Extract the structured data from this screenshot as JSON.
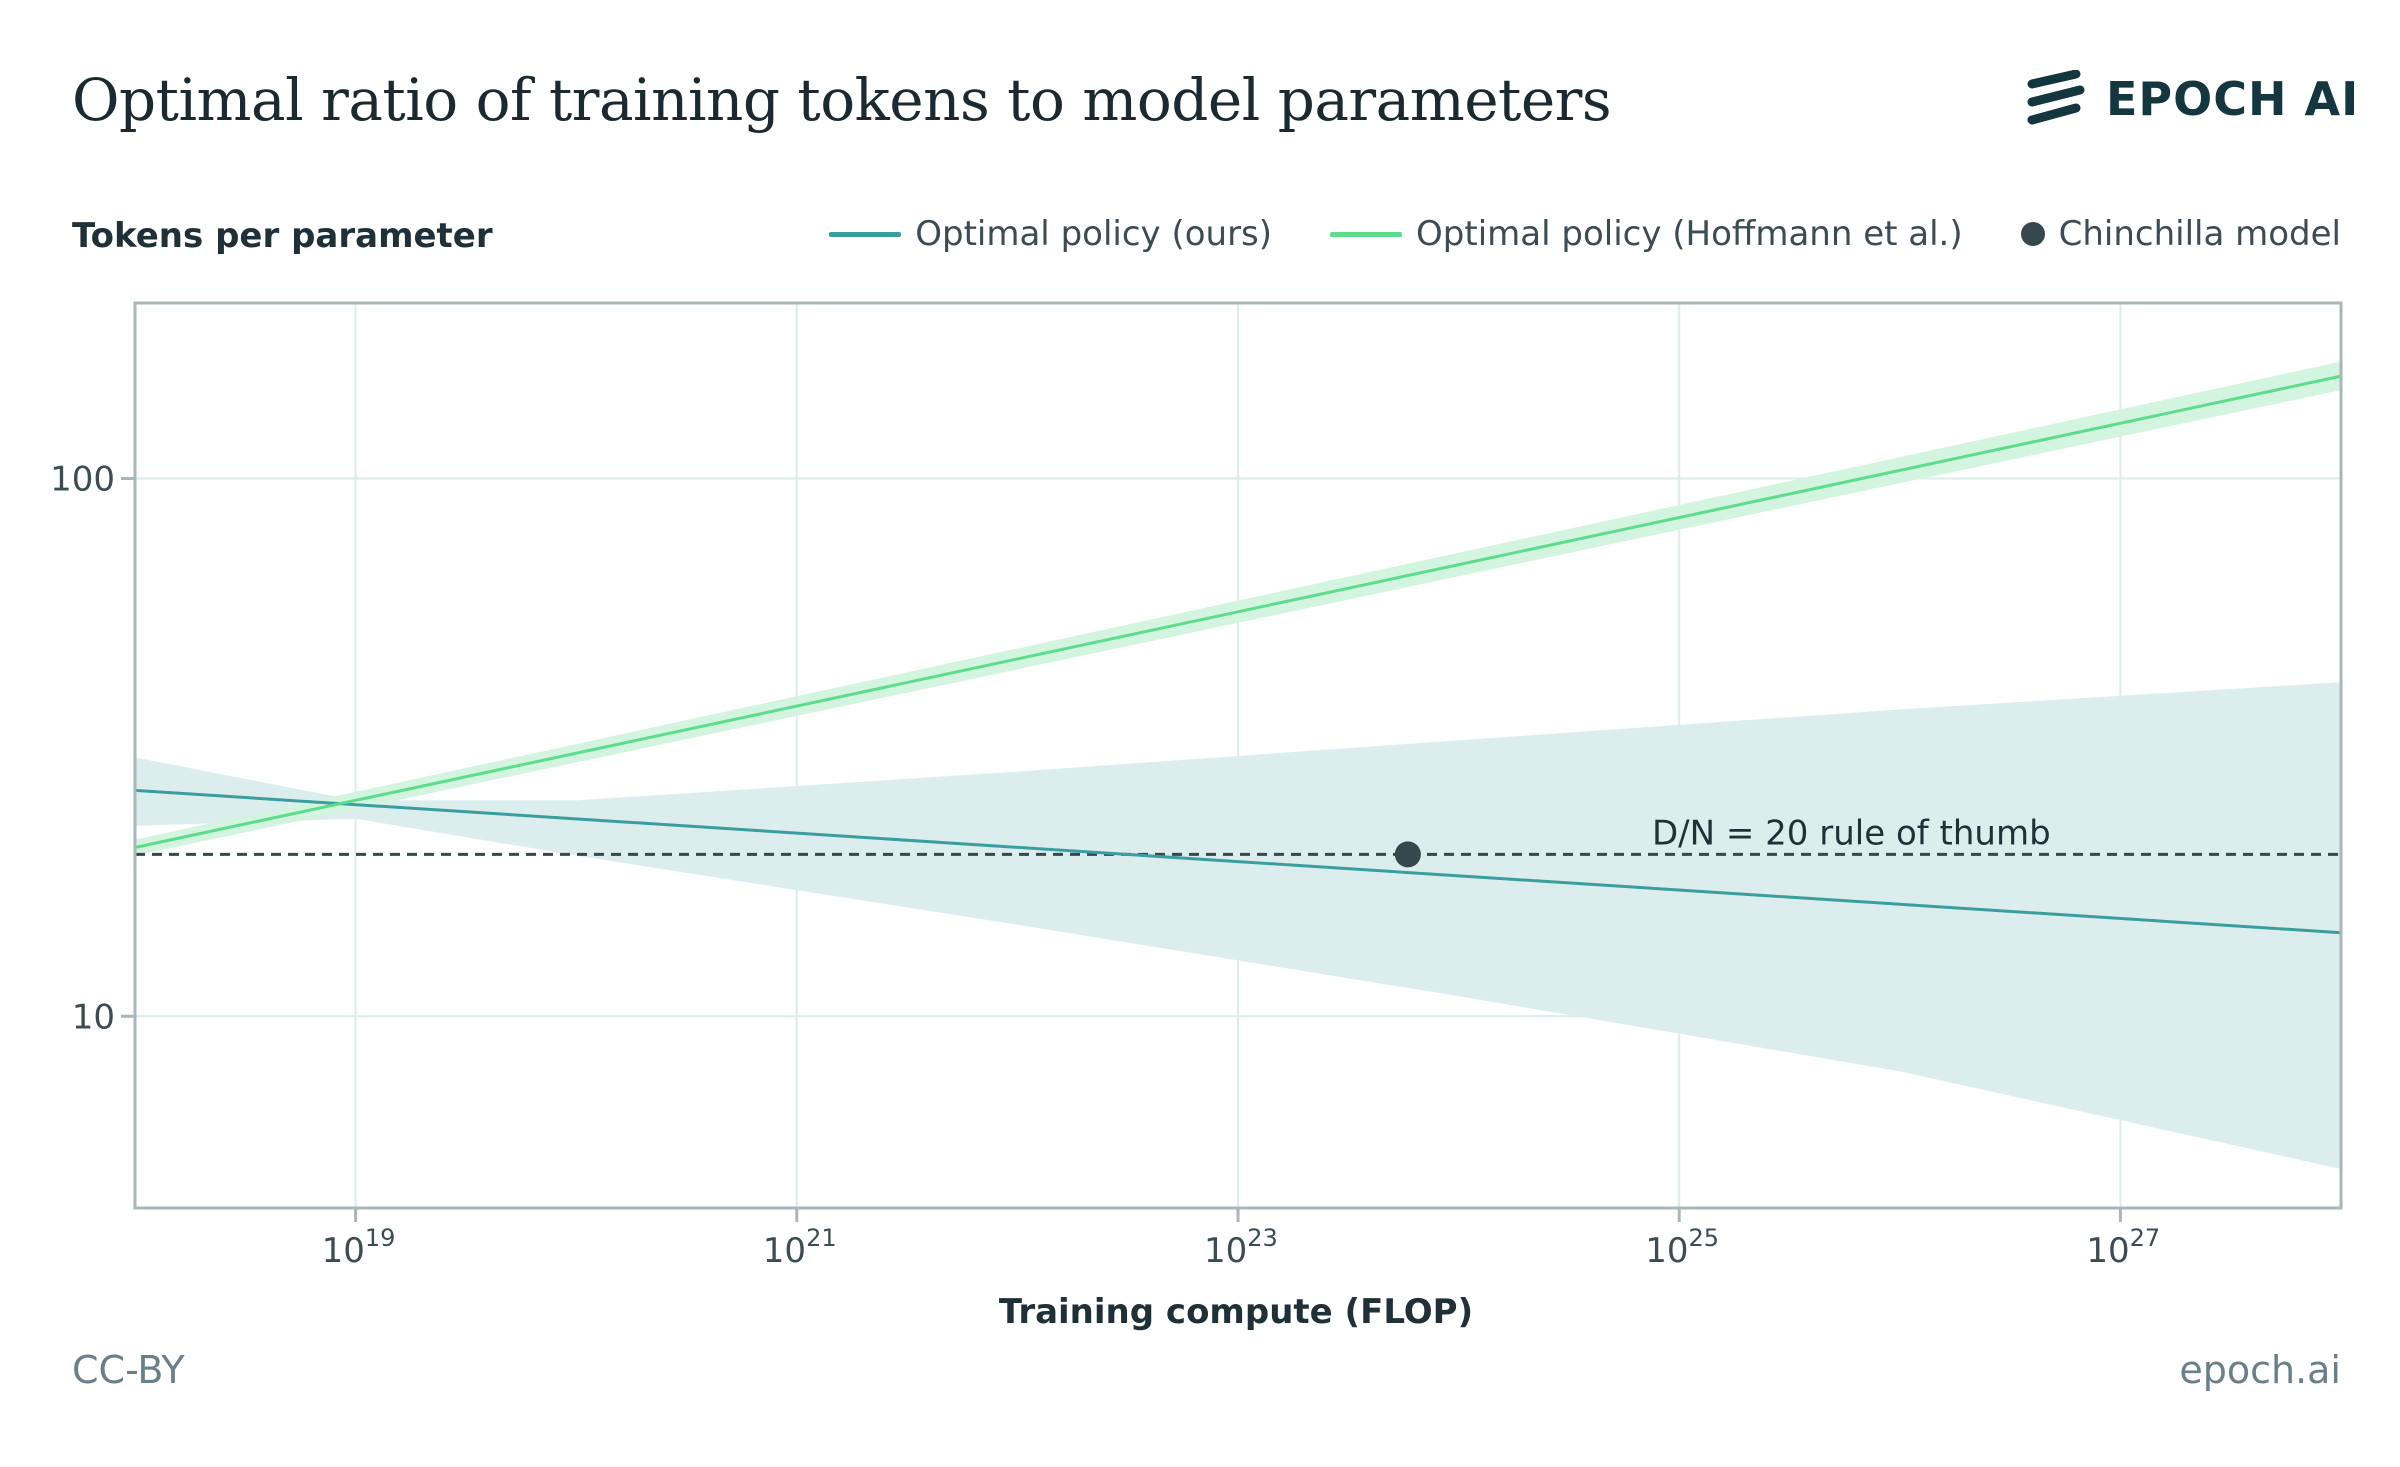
{
  "header": {
    "title": "Optimal ratio of training tokens to model parameters",
    "logo_text": "EPOCH AI"
  },
  "footer": {
    "license": "CC-BY",
    "site": "epoch.ai"
  },
  "colors": {
    "ours": "#3a9ea0",
    "ours_band": "#dbeeed",
    "hoffmann": "#5ddc8c",
    "hoffmann_band": "#d3f5e0",
    "chinchilla": "#36474d",
    "rule": "#36474d",
    "grid": "#dcecea",
    "frame": "#a9b7bb"
  },
  "chart_data": {
    "type": "line",
    "ylabel": "Tokens per parameter",
    "xlabel": "Training compute (FLOP)",
    "x_scale": "log10",
    "y_scale": "log10",
    "xlim_log10": [
      18,
      28
    ],
    "ylim": [
      4.4,
      212
    ],
    "x_ticks": [
      {
        "base": "10",
        "exp": "19",
        "log10": 19
      },
      {
        "base": "10",
        "exp": "21",
        "log10": 21
      },
      {
        "base": "10",
        "exp": "23",
        "log10": 23
      },
      {
        "base": "10",
        "exp": "25",
        "log10": 25
      },
      {
        "base": "10",
        "exp": "27",
        "log10": 27
      }
    ],
    "y_ticks": [
      {
        "label": "100",
        "value": 100
      },
      {
        "label": "10",
        "value": 10
      }
    ],
    "grid": true,
    "legend_position": "top-right",
    "series": [
      {
        "name": "Optimal policy (ours)",
        "kind": "line",
        "x_log10": [
          18,
          28
        ],
        "y": [
          26.3,
          14.3
        ],
        "band_low": [
          {
            "x_log10": 18,
            "y": 22.6
          },
          {
            "x_log10": 19,
            "y": 23.3
          },
          {
            "x_log10": 20,
            "y": 19.9
          },
          {
            "x_log10": 22,
            "y": 14.8
          },
          {
            "x_log10": 24,
            "y": 10.9
          },
          {
            "x_log10": 26,
            "y": 7.9
          },
          {
            "x_log10": 28,
            "y": 5.2
          }
        ],
        "band_high": [
          {
            "x_log10": 18,
            "y": 30.3
          },
          {
            "x_log10": 19,
            "y": 25.2
          },
          {
            "x_log10": 20,
            "y": 25.2
          },
          {
            "x_log10": 22,
            "y": 28.5
          },
          {
            "x_log10": 24,
            "y": 32.6
          },
          {
            "x_log10": 26,
            "y": 37.2
          },
          {
            "x_log10": 28,
            "y": 41.8
          }
        ]
      },
      {
        "name": "Optimal policy (Hoffmann et al.)",
        "kind": "line",
        "x_log10": [
          18,
          28
        ],
        "y": [
          20.6,
          155
        ],
        "band_low": [
          {
            "x_log10": 18,
            "y": 19.9
          },
          {
            "x_log10": 28,
            "y": 146
          }
        ],
        "band_high": [
          {
            "x_log10": 18,
            "y": 21.3
          },
          {
            "x_log10": 28,
            "y": 165
          }
        ]
      },
      {
        "name": "Chinchilla model",
        "kind": "point",
        "x_log10": 23.77,
        "y": 20
      }
    ],
    "reference_line": {
      "y": 20,
      "label": "D/N = 20 rule of thumb"
    }
  }
}
